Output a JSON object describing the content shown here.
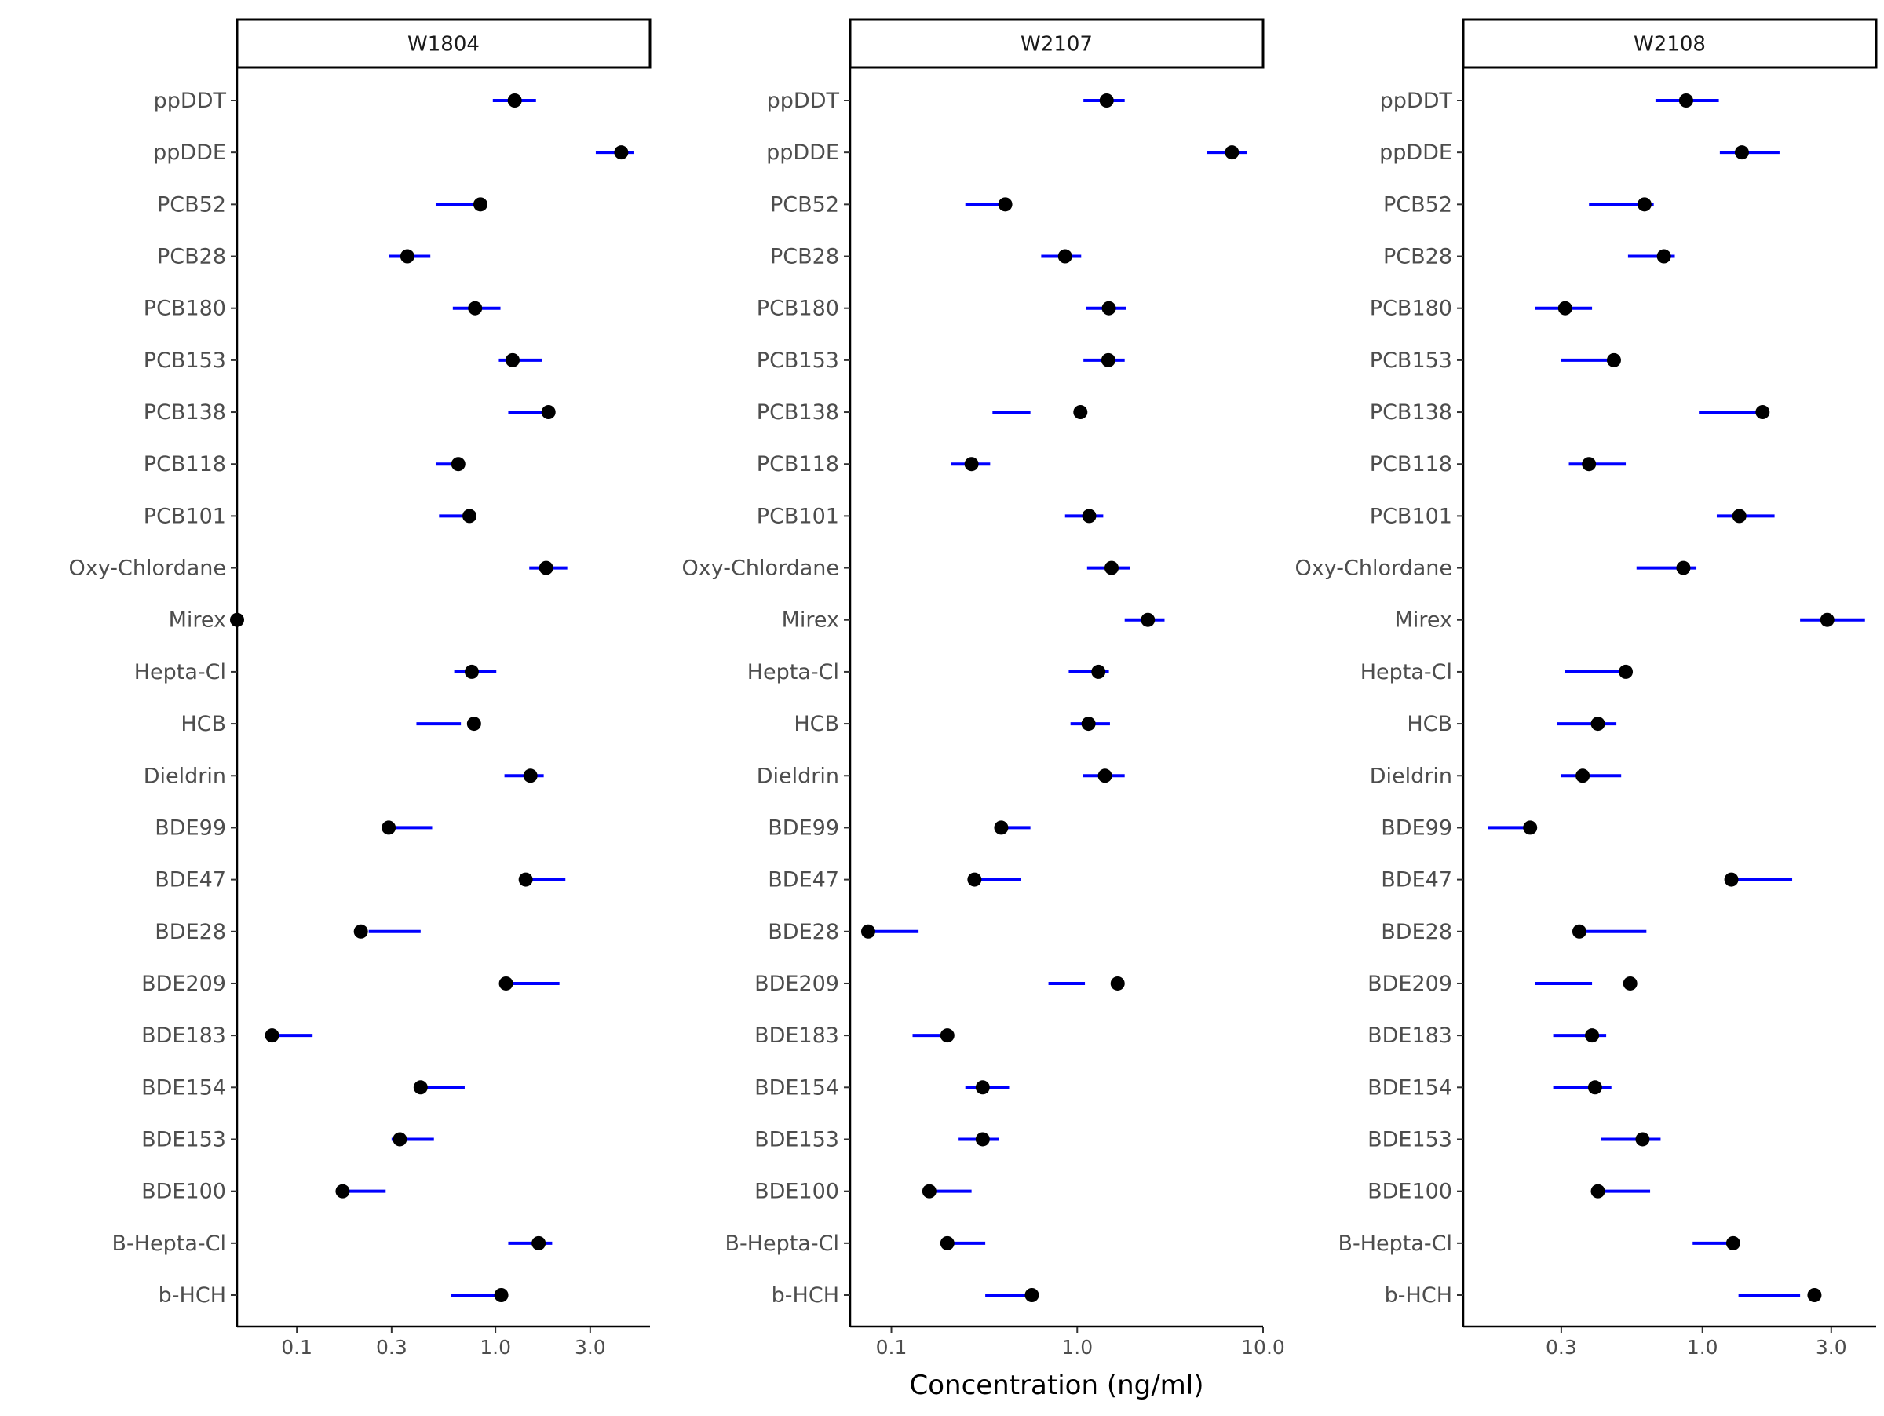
{
  "chart_data": {
    "type": "scatter",
    "x_title": "Concentration (ng/ml)",
    "x_scale": "log10",
    "categories": [
      "ppDDT",
      "ppDDE",
      "PCB52",
      "PCB28",
      "PCB180",
      "PCB153",
      "PCB138",
      "PCB118",
      "PCB101",
      "Oxy-Chlordane",
      "Mirex",
      "Hepta-Cl",
      "HCB",
      "Dieldrin",
      "BDE99",
      "BDE47",
      "BDE28",
      "BDE209",
      "BDE183",
      "BDE154",
      "BDE153",
      "BDE100",
      "B-Hepta-Cl",
      "b-HCH"
    ],
    "colors": {
      "point": "#000000",
      "interval": "#0000ff"
    },
    "panels": [
      {
        "title": "W1804",
        "xlim": [
          0.05,
          6.0
        ],
        "xticks": [
          {
            "value": 0.1,
            "label": "0.1"
          },
          {
            "value": 0.3,
            "label": "0.3"
          },
          {
            "value": 1.0,
            "label": "1.0"
          },
          {
            "value": 3.0,
            "label": "3.0"
          }
        ],
        "points": [
          1.25,
          4.3,
          0.84,
          0.36,
          0.79,
          1.22,
          1.85,
          0.65,
          0.74,
          1.8,
          0.05,
          0.76,
          0.78,
          1.5,
          0.29,
          1.42,
          0.21,
          1.13,
          0.075,
          0.42,
          0.33,
          0.17,
          1.65,
          1.07
        ],
        "intervals": [
          [
            0.97,
            1.6
          ],
          [
            3.2,
            5.0
          ],
          [
            0.5,
            0.86
          ],
          [
            0.29,
            0.47
          ],
          [
            0.61,
            1.06
          ],
          [
            1.04,
            1.72
          ],
          [
            1.16,
            1.92
          ],
          [
            0.5,
            0.67
          ],
          [
            0.52,
            0.76
          ],
          [
            1.48,
            2.3
          ],
          [
            null,
            null
          ],
          [
            0.62,
            1.01
          ],
          [
            0.4,
            0.67
          ],
          [
            1.11,
            1.75
          ],
          [
            0.31,
            0.48
          ],
          [
            1.48,
            2.25
          ],
          [
            0.23,
            0.42
          ],
          [
            1.2,
            2.1
          ],
          [
            0.07,
            0.12
          ],
          [
            0.45,
            0.7
          ],
          [
            0.3,
            0.49
          ],
          [
            0.18,
            0.28
          ],
          [
            1.16,
            1.93
          ],
          [
            0.6,
            1.07
          ]
        ]
      },
      {
        "title": "W2107",
        "xlim": [
          0.06,
          10.0
        ],
        "xticks": [
          {
            "value": 0.1,
            "label": "0.1"
          },
          {
            "value": 1.0,
            "label": "1.0"
          },
          {
            "value": 10.0,
            "label": "10.0"
          }
        ],
        "points": [
          1.44,
          6.8,
          0.41,
          0.86,
          1.48,
          1.47,
          1.04,
          0.27,
          1.16,
          1.53,
          2.4,
          1.3,
          1.15,
          1.41,
          0.39,
          0.28,
          0.075,
          1.65,
          0.2,
          0.31,
          0.31,
          0.16,
          0.2,
          0.57
        ],
        "intervals": [
          [
            1.08,
            1.8
          ],
          [
            5.0,
            8.2
          ],
          [
            0.25,
            0.41
          ],
          [
            0.64,
            1.05
          ],
          [
            1.12,
            1.83
          ],
          [
            1.08,
            1.8
          ],
          [
            0.35,
            0.56
          ],
          [
            0.21,
            0.34
          ],
          [
            0.86,
            1.38
          ],
          [
            1.13,
            1.92
          ],
          [
            1.8,
            2.95
          ],
          [
            0.9,
            1.48
          ],
          [
            0.92,
            1.5
          ],
          [
            1.07,
            1.8
          ],
          [
            0.39,
            0.56
          ],
          [
            0.3,
            0.5
          ],
          [
            0.07,
            0.14
          ],
          [
            0.7,
            1.1
          ],
          [
            0.13,
            0.2
          ],
          [
            0.25,
            0.43
          ],
          [
            0.23,
            0.38
          ],
          [
            0.16,
            0.27
          ],
          [
            0.2,
            0.32
          ],
          [
            0.32,
            0.57
          ]
        ]
      },
      {
        "title": "W2108",
        "xlim": [
          0.13,
          4.4
        ],
        "xticks": [
          {
            "value": 0.3,
            "label": "0.3"
          },
          {
            "value": 1.0,
            "label": "1.0"
          },
          {
            "value": 3.0,
            "label": "3.0"
          }
        ],
        "points": [
          0.87,
          1.4,
          0.61,
          0.72,
          0.31,
          0.47,
          1.67,
          0.38,
          1.37,
          0.85,
          2.9,
          0.52,
          0.41,
          0.36,
          0.23,
          1.28,
          0.35,
          0.54,
          0.39,
          0.4,
          0.6,
          0.41,
          1.3,
          2.6
        ],
        "intervals": [
          [
            0.67,
            1.15
          ],
          [
            1.16,
            1.93
          ],
          [
            0.38,
            0.66
          ],
          [
            0.53,
            0.79
          ],
          [
            0.24,
            0.39
          ],
          [
            0.3,
            0.48
          ],
          [
            0.97,
            1.6
          ],
          [
            0.32,
            0.52
          ],
          [
            1.13,
            1.85
          ],
          [
            0.57,
            0.95
          ],
          [
            2.3,
            4.0
          ],
          [
            0.31,
            0.53
          ],
          [
            0.29,
            0.48
          ],
          [
            0.3,
            0.5
          ],
          [
            0.16,
            0.23
          ],
          [
            1.28,
            2.15
          ],
          [
            0.35,
            0.62
          ],
          [
            0.24,
            0.39
          ],
          [
            0.28,
            0.44
          ],
          [
            0.28,
            0.46
          ],
          [
            0.42,
            0.7
          ],
          [
            0.4,
            0.64
          ],
          [
            0.92,
            1.33
          ],
          [
            1.36,
            2.3
          ]
        ]
      }
    ]
  }
}
